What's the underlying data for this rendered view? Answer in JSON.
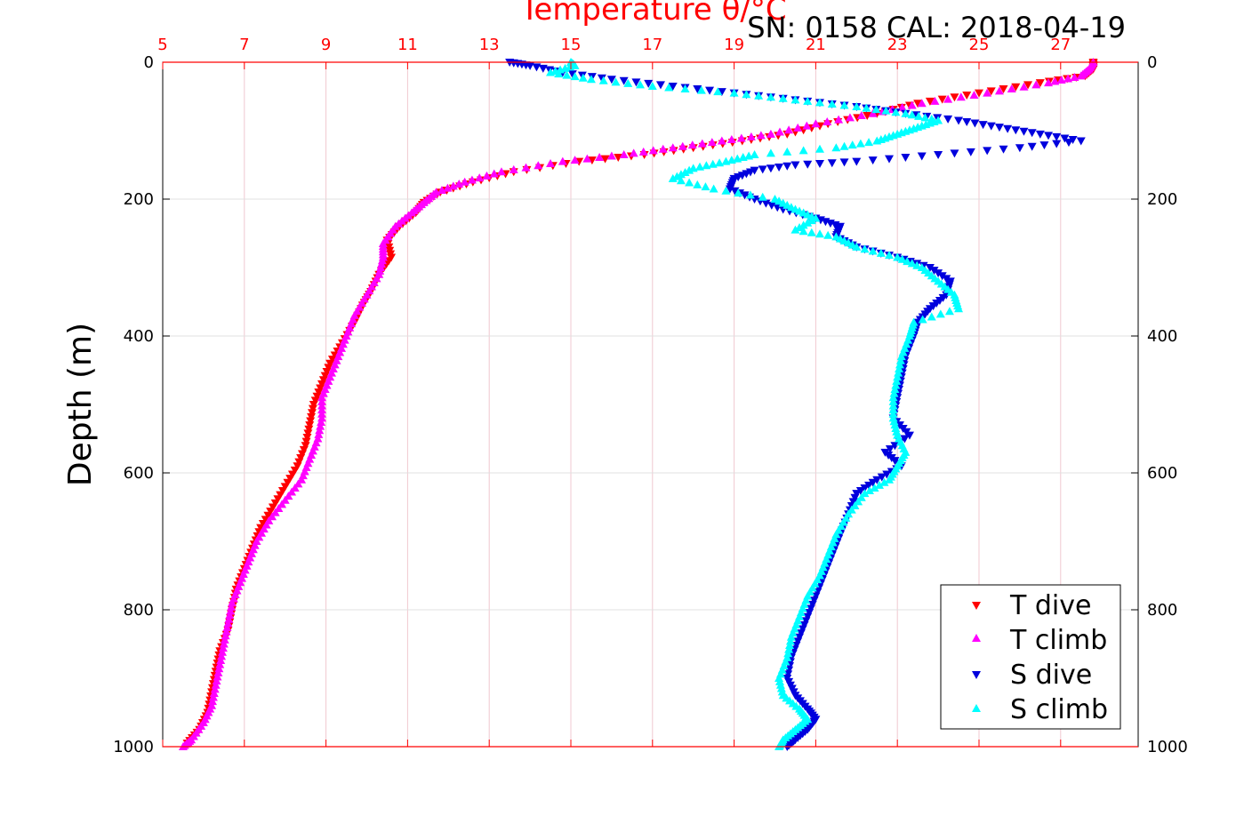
{
  "chart_data": {
    "type": "scatter",
    "title": "Temperature θ/°C",
    "caption": "SN: 0158  CAL: 2018-04-19",
    "xlabel": "Temperature θ/°C",
    "ylabel": "Depth (m)",
    "x_axis_position": "top",
    "xlim": [
      5,
      28.9
    ],
    "xticks": [
      5,
      7,
      9,
      11,
      13,
      15,
      17,
      19,
      21,
      23,
      25,
      27
    ],
    "ylim": [
      0,
      1000
    ],
    "y_reversed": true,
    "yticks": [
      0,
      200,
      400,
      600,
      800,
      1000
    ],
    "grid": true,
    "legend_position": "bottom-right",
    "colors": {
      "axis": "#ff0000",
      "grid": "#e0e0e0",
      "grid_x": "#f0c8d0"
    },
    "series": [
      {
        "name": "T dive",
        "marker": "triangle-down",
        "color": "#ff0000",
        "points": [
          [
            27.8,
            0
          ],
          [
            27.8,
            10
          ],
          [
            27.6,
            20
          ],
          [
            26.5,
            30
          ],
          [
            25.0,
            45
          ],
          [
            23.5,
            60
          ],
          [
            22.5,
            75
          ],
          [
            21.3,
            90
          ],
          [
            20.3,
            105
          ],
          [
            19.2,
            115
          ],
          [
            18.0,
            125
          ],
          [
            16.8,
            135
          ],
          [
            15.2,
            145
          ],
          [
            13.6,
            160
          ],
          [
            12.6,
            175
          ],
          [
            11.8,
            190
          ],
          [
            11.4,
            205
          ],
          [
            11.2,
            220
          ],
          [
            10.8,
            240
          ],
          [
            10.5,
            260
          ],
          [
            10.6,
            285
          ],
          [
            10.3,
            310
          ],
          [
            10.1,
            335
          ],
          [
            9.9,
            355
          ],
          [
            9.7,
            380
          ],
          [
            9.4,
            410
          ],
          [
            9.1,
            440
          ],
          [
            8.9,
            470
          ],
          [
            8.7,
            500
          ],
          [
            8.6,
            530
          ],
          [
            8.5,
            560
          ],
          [
            8.3,
            590
          ],
          [
            8.0,
            620
          ],
          [
            7.7,
            650
          ],
          [
            7.4,
            680
          ],
          [
            7.2,
            710
          ],
          [
            7.0,
            740
          ],
          [
            6.8,
            770
          ],
          [
            6.7,
            800
          ],
          [
            6.6,
            830
          ],
          [
            6.4,
            860
          ],
          [
            6.3,
            890
          ],
          [
            6.2,
            920
          ],
          [
            6.1,
            950
          ],
          [
            5.9,
            975
          ],
          [
            5.6,
            995
          ]
        ]
      },
      {
        "name": "T climb",
        "marker": "triangle-up",
        "color": "#ff00ff",
        "points": [
          [
            27.8,
            0
          ],
          [
            27.7,
            10
          ],
          [
            27.5,
            20
          ],
          [
            26.7,
            30
          ],
          [
            25.2,
            45
          ],
          [
            23.6,
            60
          ],
          [
            22.4,
            75
          ],
          [
            21.0,
            90
          ],
          [
            19.9,
            105
          ],
          [
            18.7,
            115
          ],
          [
            17.5,
            125
          ],
          [
            16.3,
            135
          ],
          [
            14.8,
            145
          ],
          [
            13.3,
            160
          ],
          [
            12.4,
            175
          ],
          [
            11.7,
            190
          ],
          [
            11.4,
            205
          ],
          [
            11.1,
            220
          ],
          [
            10.7,
            240
          ],
          [
            10.4,
            265
          ],
          [
            10.4,
            285
          ],
          [
            10.3,
            310
          ],
          [
            10.0,
            340
          ],
          [
            9.7,
            370
          ],
          [
            9.5,
            400
          ],
          [
            9.3,
            430
          ],
          [
            9.1,
            460
          ],
          [
            8.9,
            490
          ],
          [
            8.9,
            520
          ],
          [
            8.8,
            550
          ],
          [
            8.6,
            580
          ],
          [
            8.4,
            610
          ],
          [
            8.0,
            640
          ],
          [
            7.6,
            670
          ],
          [
            7.3,
            700
          ],
          [
            7.1,
            730
          ],
          [
            6.9,
            760
          ],
          [
            6.7,
            790
          ],
          [
            6.6,
            820
          ],
          [
            6.5,
            850
          ],
          [
            6.4,
            880
          ],
          [
            6.3,
            910
          ],
          [
            6.2,
            940
          ],
          [
            6.0,
            965
          ],
          [
            5.7,
            990
          ],
          [
            5.5,
            1000
          ]
        ]
      },
      {
        "name": "S dive",
        "marker": "triangle-down",
        "color": "#0000dd",
        "points": [
          [
            13.5,
            0
          ],
          [
            14.0,
            5
          ],
          [
            14.8,
            15
          ],
          [
            16.0,
            25
          ],
          [
            17.5,
            35
          ],
          [
            19.0,
            45
          ],
          [
            20.5,
            55
          ],
          [
            22.0,
            65
          ],
          [
            23.2,
            75
          ],
          [
            24.5,
            85
          ],
          [
            25.5,
            95
          ],
          [
            26.5,
            105
          ],
          [
            27.5,
            115
          ],
          [
            26.0,
            125
          ],
          [
            24.0,
            135
          ],
          [
            22.0,
            145
          ],
          [
            20.5,
            150
          ],
          [
            19.5,
            158
          ],
          [
            19.0,
            170
          ],
          [
            18.9,
            185
          ],
          [
            19.5,
            200
          ],
          [
            20.2,
            215
          ],
          [
            21.0,
            228
          ],
          [
            21.6,
            240
          ],
          [
            21.5,
            255
          ],
          [
            22.0,
            270
          ],
          [
            23.0,
            285
          ],
          [
            23.8,
            300
          ],
          [
            24.3,
            320
          ],
          [
            24.2,
            340
          ],
          [
            23.8,
            360
          ],
          [
            23.5,
            380
          ],
          [
            23.4,
            400
          ],
          [
            23.2,
            430
          ],
          [
            23.1,
            460
          ],
          [
            23.0,
            490
          ],
          [
            22.9,
            520
          ],
          [
            23.3,
            545
          ],
          [
            22.7,
            570
          ],
          [
            23.1,
            590
          ],
          [
            22.5,
            610
          ],
          [
            22.0,
            630
          ],
          [
            21.8,
            660
          ],
          [
            21.6,
            690
          ],
          [
            21.4,
            720
          ],
          [
            21.2,
            750
          ],
          [
            21.0,
            780
          ],
          [
            20.8,
            810
          ],
          [
            20.6,
            840
          ],
          [
            20.4,
            870
          ],
          [
            20.3,
            900
          ],
          [
            20.5,
            925
          ],
          [
            20.8,
            945
          ],
          [
            21.0,
            960
          ],
          [
            20.8,
            975
          ],
          [
            20.5,
            990
          ],
          [
            20.3,
            1000
          ]
        ]
      },
      {
        "name": "S climb",
        "marker": "triangle-up",
        "color": "#00ffff",
        "points": [
          [
            15.0,
            0
          ],
          [
            15.1,
            5
          ],
          [
            14.5,
            15
          ],
          [
            15.5,
            25
          ],
          [
            17.0,
            35
          ],
          [
            19.0,
            45
          ],
          [
            20.5,
            55
          ],
          [
            22.0,
            65
          ],
          [
            23.2,
            75
          ],
          [
            24.0,
            85
          ],
          [
            23.5,
            95
          ],
          [
            23.0,
            105
          ],
          [
            22.5,
            115
          ],
          [
            21.5,
            125
          ],
          [
            19.5,
            135
          ],
          [
            18.8,
            145
          ],
          [
            18.0,
            155
          ],
          [
            17.5,
            170
          ],
          [
            18.5,
            185
          ],
          [
            20.0,
            200
          ],
          [
            20.5,
            215
          ],
          [
            21.0,
            228
          ],
          [
            20.5,
            245
          ],
          [
            21.5,
            255
          ],
          [
            22.0,
            270
          ],
          [
            23.0,
            285
          ],
          [
            23.6,
            300
          ],
          [
            24.0,
            320
          ],
          [
            24.4,
            340
          ],
          [
            24.5,
            360
          ],
          [
            23.4,
            380
          ],
          [
            23.3,
            400
          ],
          [
            23.1,
            430
          ],
          [
            23.0,
            460
          ],
          [
            22.9,
            490
          ],
          [
            22.9,
            520
          ],
          [
            23.0,
            545
          ],
          [
            23.2,
            570
          ],
          [
            23.0,
            590
          ],
          [
            22.8,
            610
          ],
          [
            22.2,
            630
          ],
          [
            21.8,
            660
          ],
          [
            21.5,
            690
          ],
          [
            21.3,
            720
          ],
          [
            21.1,
            750
          ],
          [
            20.8,
            780
          ],
          [
            20.6,
            810
          ],
          [
            20.4,
            840
          ],
          [
            20.3,
            870
          ],
          [
            20.1,
            900
          ],
          [
            20.2,
            925
          ],
          [
            20.6,
            945
          ],
          [
            20.8,
            960
          ],
          [
            20.5,
            975
          ],
          [
            20.2,
            990
          ],
          [
            20.1,
            1000
          ]
        ]
      }
    ]
  }
}
